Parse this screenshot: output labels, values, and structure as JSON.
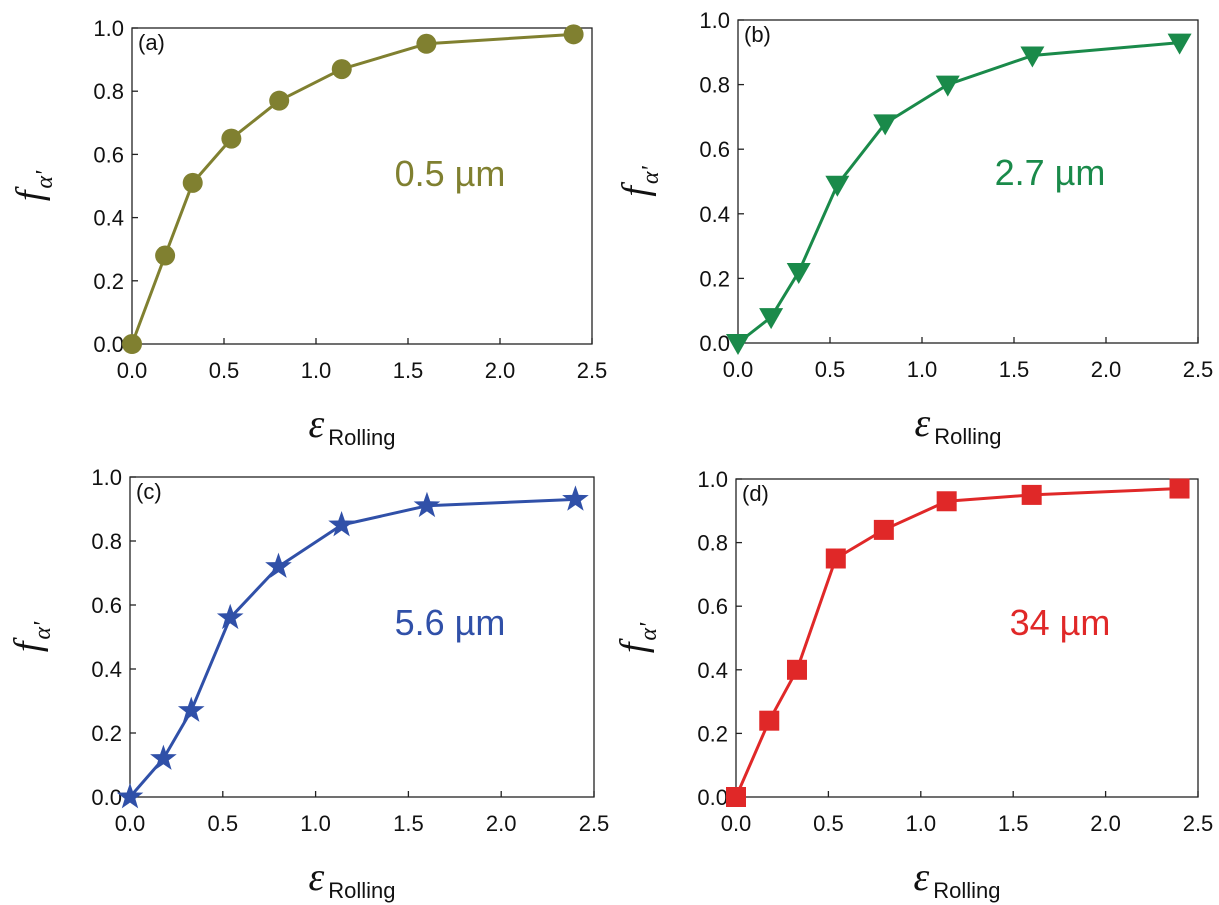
{
  "chart_data": [
    {
      "type": "line",
      "panel_label": "(a)",
      "annotation": "0.5 µm",
      "color": "#808030",
      "marker": "circle",
      "ylabel": "f",
      "ylabel_sub": "α'",
      "xlabel": "ε",
      "xlabel_sub": "Rolling",
      "xlim": [
        0,
        2.5
      ],
      "ylim": [
        0,
        1.0
      ],
      "xticks": [
        "0.0",
        "0.5",
        "1.0",
        "1.5",
        "2.0",
        "2.5"
      ],
      "yticks": [
        "0.0",
        "0.2",
        "0.4",
        "0.6",
        "0.8",
        "1.0"
      ],
      "grid": false,
      "x": [
        0,
        0.18,
        0.33,
        0.54,
        0.8,
        1.14,
        1.6,
        2.4
      ],
      "y": [
        0,
        0.28,
        0.51,
        0.65,
        0.77,
        0.87,
        0.95,
        0.98
      ]
    },
    {
      "type": "line",
      "panel_label": "(b)",
      "annotation": "2.7 µm",
      "color": "#1a8a4a",
      "marker": "triangle-down",
      "ylabel": "f",
      "ylabel_sub": "α'",
      "xlabel": "ε",
      "xlabel_sub": "Rolling",
      "xlim": [
        0,
        2.5
      ],
      "ylim": [
        0,
        1.0
      ],
      "xticks": [
        "0.0",
        "0.5",
        "1.0",
        "1.5",
        "2.0",
        "2.5"
      ],
      "yticks": [
        "0.0",
        "0.2",
        "0.4",
        "0.6",
        "0.8",
        "1.0"
      ],
      "grid": false,
      "x": [
        0,
        0.18,
        0.33,
        0.54,
        0.8,
        1.14,
        1.6,
        2.4
      ],
      "y": [
        0,
        0.08,
        0.22,
        0.49,
        0.68,
        0.8,
        0.89,
        0.93
      ]
    },
    {
      "type": "line",
      "panel_label": "(c)",
      "annotation": "5.6 µm",
      "color": "#3050a8",
      "marker": "star",
      "ylabel": "f",
      "ylabel_sub": "α'",
      "xlabel": "ε",
      "xlabel_sub": "Rolling",
      "xlim": [
        0,
        2.5
      ],
      "ylim": [
        0,
        1.0
      ],
      "xticks": [
        "0.0",
        "0.5",
        "1.0",
        "1.5",
        "2.0",
        "2.5"
      ],
      "yticks": [
        "0.0",
        "0.2",
        "0.4",
        "0.6",
        "0.8",
        "1.0"
      ],
      "grid": false,
      "x": [
        0,
        0.18,
        0.33,
        0.54,
        0.8,
        1.14,
        1.6,
        2.4
      ],
      "y": [
        0,
        0.12,
        0.27,
        0.56,
        0.72,
        0.85,
        0.91,
        0.93
      ]
    },
    {
      "type": "line",
      "panel_label": "(d)",
      "annotation": "34 µm",
      "color": "#e02828",
      "marker": "square",
      "ylabel": "f",
      "ylabel_sub": "α'",
      "xlabel": "ε",
      "xlabel_sub": "Rolling",
      "xlim": [
        0,
        2.5
      ],
      "ylim": [
        0,
        1.0
      ],
      "xticks": [
        "0.0",
        "0.5",
        "1.0",
        "1.5",
        "2.0",
        "2.5"
      ],
      "yticks": [
        "0.0",
        "0.2",
        "0.4",
        "0.6",
        "0.8",
        "1.0"
      ],
      "grid": false,
      "x": [
        0,
        0.18,
        0.33,
        0.54,
        0.8,
        1.14,
        1.6,
        2.4
      ],
      "y": [
        0,
        0.24,
        0.4,
        0.75,
        0.84,
        0.93,
        0.95,
        0.97
      ]
    }
  ]
}
